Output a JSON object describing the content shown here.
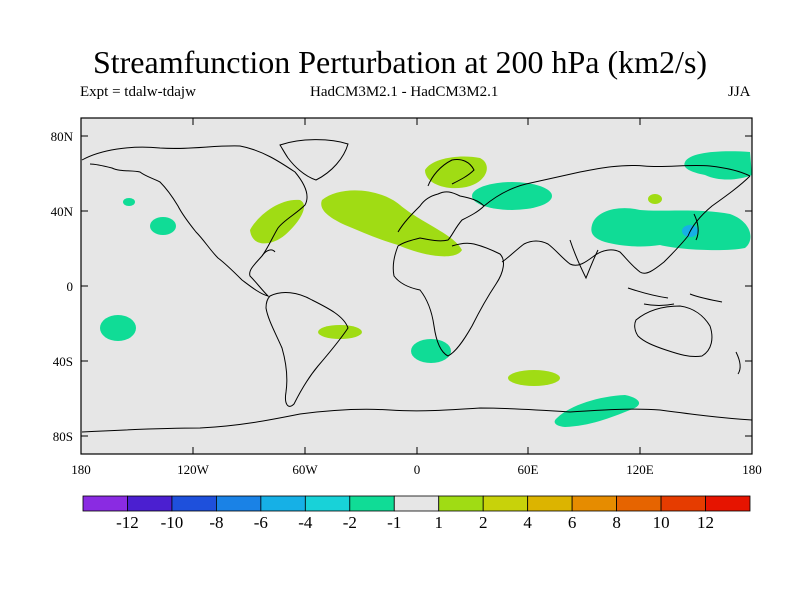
{
  "title": "Streamfunction Perturbation at 200 hPa (km2/s)",
  "subtitle_left": "Expt = tdalw-tdajw",
  "subtitle_center": "HadCM3M2.1 - HadCM3M2.1",
  "subtitle_right": "JJA",
  "y_ticks": [
    "80N",
    "40N",
    "0",
    "40S",
    "80S"
  ],
  "x_ticks": [
    "180",
    "120W",
    "60W",
    "0",
    "60E",
    "120E",
    "180"
  ],
  "colorbar": {
    "colors": [
      "#8a2be2",
      "#4b1fd0",
      "#1e50dc",
      "#1a82e6",
      "#16b0e6",
      "#18d2d8",
      "#10dc96",
      "#e6e6e6",
      "#a0dc14",
      "#c8d20a",
      "#dcb400",
      "#e68c00",
      "#e66400",
      "#e63c00",
      "#e61400"
    ],
    "labels": [
      "-12",
      "-10",
      "-8",
      "-6",
      "-4",
      "-2",
      "-1",
      "1",
      "2",
      "4",
      "6",
      "8",
      "10",
      "12"
    ]
  },
  "colors": {
    "ocean_background": "#e6e6e6",
    "negative_anomaly": "#10dc96",
    "negative_strong": "#16b0e6",
    "positive_anomaly": "#a0dc14",
    "coastline": "#000000"
  }
}
